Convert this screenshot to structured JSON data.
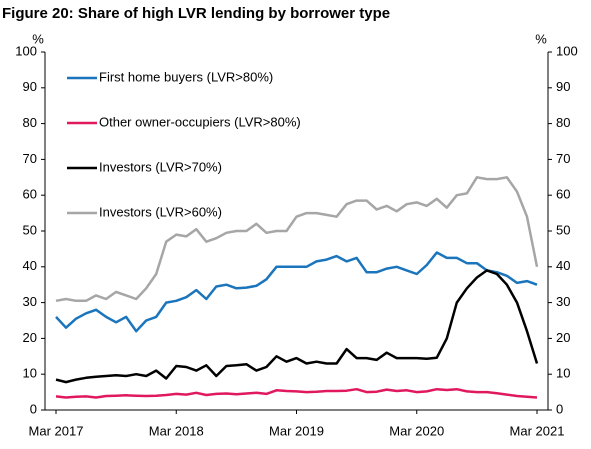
{
  "chart_data": {
    "type": "line",
    "title": "Figure 20: Share of high LVR lending by borrower type",
    "y_label": "%",
    "y2_label": "%",
    "categories": [
      "Mar 2017",
      null,
      null,
      null,
      null,
      null,
      null,
      null,
      null,
      null,
      null,
      null,
      "Mar 2018",
      null,
      null,
      null,
      null,
      null,
      null,
      null,
      null,
      null,
      null,
      null,
      "Mar 2019",
      null,
      null,
      null,
      null,
      null,
      null,
      null,
      null,
      null,
      null,
      null,
      "Mar 2020",
      null,
      null,
      null,
      null,
      null,
      null,
      null,
      null,
      null,
      null,
      null,
      "Mar 2021"
    ],
    "ylim": [
      0,
      100
    ],
    "yticks": [
      0,
      10,
      20,
      30,
      40,
      50,
      60,
      70,
      80,
      90,
      100
    ],
    "y2lim": [
      0,
      100
    ],
    "y2ticks": [
      0,
      10,
      20,
      30,
      40,
      50,
      60,
      70,
      80,
      90,
      100
    ],
    "grid": false,
    "legend": "upper left",
    "series": [
      {
        "name": "First home buyers (LVR>80%)",
        "color": "#1b75bc",
        "values": [
          26,
          23,
          25.5,
          27,
          28,
          26,
          24.5,
          26,
          22,
          25,
          26,
          30,
          30.5,
          31.5,
          33.5,
          31,
          34.5,
          35,
          34,
          34.2,
          34.7,
          36.5,
          40,
          40,
          40,
          40,
          41.5,
          42,
          43,
          41.5,
          42.5,
          38.5,
          38.5,
          39.5,
          40,
          39,
          38,
          40.5,
          44,
          42.5,
          42.5,
          41,
          41,
          39,
          38.5,
          37.5,
          35.5,
          36,
          35
        ]
      },
      {
        "name": "Other owner-occupiers (LVR>80%)",
        "color": "#e0195f",
        "values": [
          3.8,
          3.5,
          3.7,
          3.8,
          3.5,
          3.9,
          4,
          4.1,
          4,
          3.9,
          4,
          4.2,
          4.5,
          4.3,
          4.8,
          4.2,
          4.5,
          4.6,
          4.4,
          4.6,
          4.8,
          4.5,
          5.5,
          5.3,
          5.2,
          5,
          5.1,
          5.3,
          5.3,
          5.4,
          5.8,
          5,
          5.1,
          5.7,
          5.3,
          5.5,
          5,
          5.2,
          5.8,
          5.6,
          5.8,
          5.2,
          5,
          5,
          4.7,
          4.3,
          3.9,
          3.7,
          3.5
        ]
      },
      {
        "name": "Investors (LVR>70%)",
        "color": "#000000",
        "values": [
          8.5,
          7.8,
          8.5,
          9,
          9.3,
          9.5,
          9.7,
          9.5,
          10,
          9.5,
          11,
          8.8,
          12.3,
          12,
          11,
          12.5,
          9.5,
          12.3,
          12.5,
          12.8,
          11,
          12,
          15,
          13.5,
          14.5,
          13,
          13.5,
          13,
          13,
          17,
          14.5,
          14.5,
          14,
          16,
          14.5,
          14.5,
          14.5,
          14.3,
          14.6,
          20,
          30,
          34,
          37,
          39,
          38,
          35,
          30,
          22,
          13
        ]
      },
      {
        "name": "Investors (LVR>60%)",
        "color": "#a6a6a6",
        "values": [
          30.5,
          31,
          30.5,
          30.5,
          32,
          31,
          33,
          32,
          31,
          34,
          38,
          47,
          49,
          48.5,
          50.5,
          47,
          48,
          49.5,
          50,
          50,
          52,
          49.5,
          50,
          50,
          54,
          55,
          55,
          54.5,
          54,
          57.5,
          58.5,
          58.5,
          56,
          57,
          55.5,
          57.5,
          58,
          57,
          59,
          56.5,
          60,
          60.5,
          65,
          64.5,
          64.5,
          65,
          61,
          54,
          40
        ]
      }
    ]
  }
}
